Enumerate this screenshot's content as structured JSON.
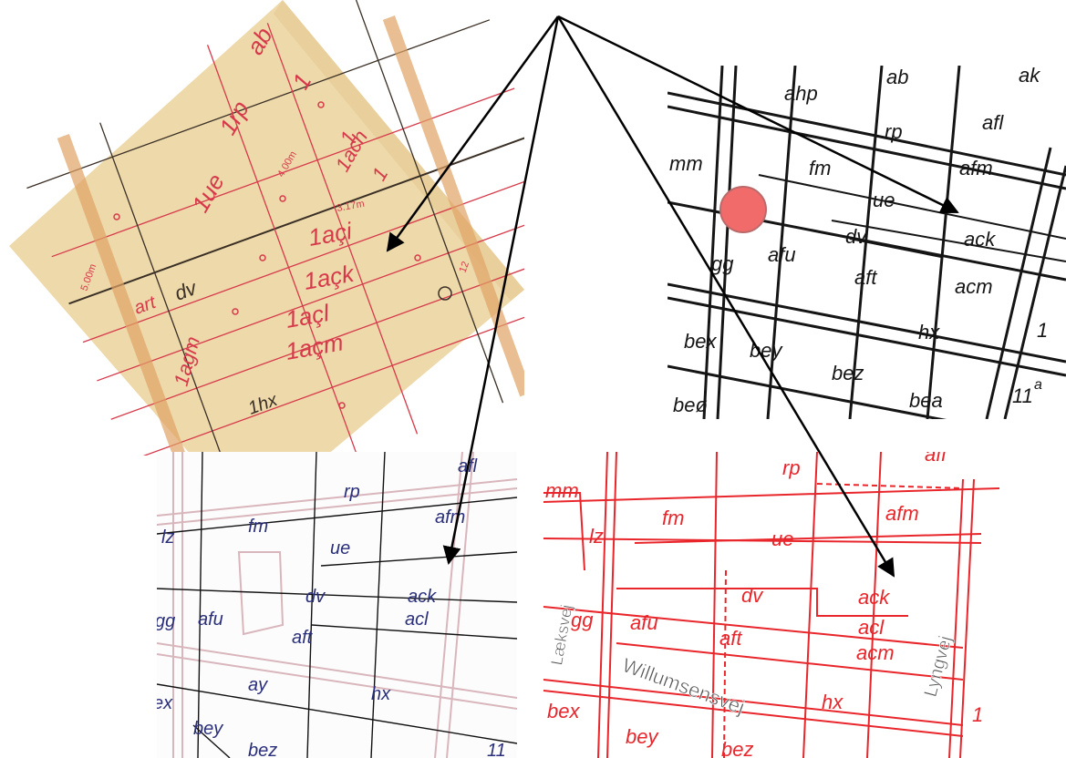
{
  "colors": {
    "paper": "#eed9ab",
    "paper_dark": "#d9b97a",
    "hist_red": "#d63a4a",
    "hist_ink": "#3a2f25",
    "bw_ink": "#151515",
    "dot": "#f26b6b",
    "blue_text": "#2a2f7a",
    "red_map": "#e8262b",
    "arrow": "#000000"
  },
  "historic_map": {
    "labels": [
      "ab",
      "1",
      "1rp",
      "1",
      "1ue",
      "1",
      "1ach",
      "1açi",
      "1açk",
      "1açl",
      "1açm",
      "1agm",
      "1hx",
      "dv",
      "art",
      "4.00m",
      "3.17m",
      "5.00m",
      "12"
    ]
  },
  "bw_map": {
    "labels": [
      "ahp",
      "ab",
      "ak",
      "rp",
      "afl",
      "mm",
      "fm",
      "afm",
      "ue",
      "ack",
      "gg",
      "afu",
      "dv",
      "aft",
      "acm",
      "bex",
      "bey",
      "hx",
      "bez",
      "bea",
      "beø",
      "11",
      "a",
      "1"
    ]
  },
  "blue_map": {
    "labels": [
      "rp",
      "afl",
      "lz",
      "fm",
      "afm",
      "ue",
      "dv",
      "ack",
      "gg",
      "afu",
      "aft",
      "acl",
      "ay",
      "hx",
      "ex",
      "bey",
      "bez",
      "11"
    ]
  },
  "red_map": {
    "labels": [
      "mm",
      "rp",
      "afl",
      "fm",
      "afm",
      "lz",
      "ue",
      "dv",
      "ack",
      "gg",
      "afu",
      "aft",
      "acl",
      "acm",
      "bex",
      "bey",
      "hx",
      "1",
      "bez"
    ],
    "streets": [
      "Willumsensvej",
      "Lyngvej",
      "Læksvej"
    ]
  }
}
